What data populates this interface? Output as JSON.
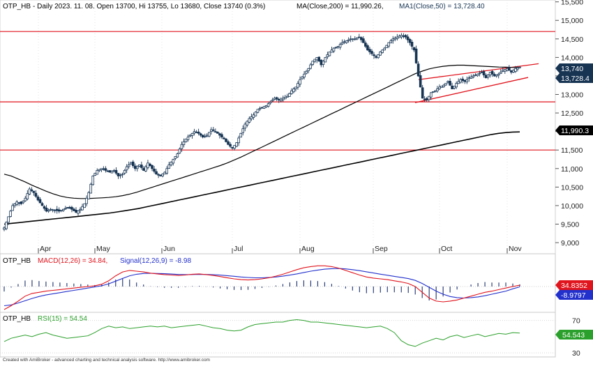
{
  "colors": {
    "candle": "#173453",
    "ma": "#000000",
    "resistance": "#e0141d",
    "macd": "#e0141d",
    "signal": "#2230cc",
    "rsi": "#2ca02c",
    "histogram": "#1b2f6b",
    "badge_price": "#173453",
    "badge_ma": "#000000",
    "badge_macd": "#e0141d",
    "badge_signal": "#2230cc",
    "badge_rsi": "#2ca02c"
  },
  "price_panel": {
    "ticker": "OTP_HB",
    "header_info": "- Daily 2023. 11. 08. Open 13700, Hi 13755, Lo 13680, Close 13740 (0.3%)",
    "ma200_label": "MA(Close,200) = 11,990.26,",
    "ma50_label": "MA1(Close,50) = 13,728.40",
    "badge_close": "13,740",
    "badge_ma50": "13,728.4",
    "badge_ma200": "11,990.3"
  },
  "macd_panel": {
    "ticker": "OTP_HB",
    "macd_label": "MACD(12,26) = 34.84,",
    "signal_label": "Signal(12,26,9) = -8.98",
    "badge_macd": "34.8352",
    "badge_signal": "-8.9797"
  },
  "rsi_panel": {
    "ticker": "OTP_HB",
    "rsi_label": "RSI(15) = 54.54",
    "badge_rsi": "54.543"
  },
  "footer": "Created with AmiBroker - advanced charting and technical analysis software. http://www.amibroker.com",
  "chart_data": [
    {
      "type": "candlestick",
      "title": "OTP_HB - Daily 2023. 11. 08. Open 13700, Hi 13755, Lo 13680, Close 13740 (0.3%)",
      "x_tick_labels": [
        "Apr",
        "May",
        "Jun",
        "Jul",
        "Aug",
        "Sep",
        "Oct",
        "Nov"
      ],
      "y_tick_labels": [
        "15,500",
        "15,000",
        "14,500",
        "14,000",
        "13,500",
        "13,000",
        "12,500",
        "12,000",
        "11,500",
        "11,000",
        "10,500",
        "10,000",
        "9,500",
        "9,000"
      ],
      "ylim": [
        8700,
        15550
      ],
      "horizontal_levels": [
        14700,
        12800,
        11500
      ],
      "trend_channel": {
        "upper": [
          [
            "2023-09-20",
            13400
          ],
          [
            "2023-11-10",
            13830
          ]
        ],
        "lower": [
          [
            "2023-09-20",
            12780
          ],
          [
            "2023-11-10",
            13460
          ]
        ]
      },
      "close_by_session": [
        9400,
        9700,
        10000,
        10100,
        10050,
        10200,
        10450,
        10350,
        10150,
        10000,
        9850,
        9900,
        9880,
        9850,
        9900,
        9950,
        9900,
        9820,
        9900,
        10050,
        10350,
        10800,
        10950,
        11000,
        10950,
        10900,
        10950,
        10800,
        10850,
        11050,
        11150,
        11000,
        11100,
        10950,
        11150,
        11000,
        10850,
        10800,
        10900,
        11100,
        11250,
        11400,
        11650,
        11800,
        11900,
        12000,
        11950,
        11850,
        11900,
        12050,
        12000,
        11900,
        11800,
        11650,
        11550,
        11700,
        11950,
        12200,
        12350,
        12450,
        12600,
        12650,
        12700,
        12800,
        12900,
        12850,
        12900,
        12950,
        13100,
        13200,
        13400,
        13550,
        13700,
        13900,
        14000,
        13800,
        14000,
        14150,
        14250,
        14300,
        14400,
        14450,
        14500,
        14500,
        14550,
        14400,
        14200,
        14100,
        14000,
        14150,
        14250,
        14400,
        14500,
        14550,
        14600,
        14550,
        14400,
        14200,
        13500,
        12900,
        12850,
        13050,
        13100,
        13200,
        13250,
        13350,
        13150,
        13300,
        13400,
        13350,
        13450,
        13500,
        13550,
        13600,
        13450,
        13600,
        13500,
        13550,
        13650,
        13700,
        13600,
        13700,
        13740
      ],
      "ma50_by_session": [
        10850,
        10800,
        10720,
        10640,
        10550,
        10470,
        10390,
        10320,
        10260,
        10220,
        10200,
        10190,
        10190,
        10200,
        10210,
        10220,
        10240,
        10270,
        10310,
        10360,
        10420,
        10480,
        10540,
        10600,
        10660,
        10720,
        10780,
        10840,
        10900,
        10960,
        11020,
        11080,
        11150,
        11230,
        11310,
        11400,
        11490,
        11580,
        11670,
        11760,
        11850,
        11940,
        12030,
        12120,
        12210,
        12300,
        12390,
        12480,
        12570,
        12660,
        12750,
        12840,
        12930,
        13020,
        13110,
        13200,
        13290,
        13380,
        13470,
        13560,
        13630,
        13690,
        13730,
        13760,
        13780,
        13790,
        13790,
        13780,
        13770,
        13760,
        13750,
        13740,
        13735,
        13730,
        13728
      ],
      "ma200_by_session": [
        9500,
        9520,
        9540,
        9560,
        9580,
        9600,
        9620,
        9640,
        9660,
        9680,
        9700,
        9720,
        9740,
        9760,
        9780,
        9800,
        9830,
        9860,
        9890,
        9920,
        9960,
        10000,
        10040,
        10080,
        10120,
        10160,
        10200,
        10240,
        10280,
        10320,
        10360,
        10400,
        10440,
        10480,
        10520,
        10560,
        10600,
        10640,
        10680,
        10720,
        10760,
        10800,
        10840,
        10880,
        10920,
        10960,
        11000,
        11040,
        11080,
        11120,
        11160,
        11200,
        11240,
        11280,
        11320,
        11360,
        11400,
        11440,
        11480,
        11520,
        11560,
        11600,
        11640,
        11680,
        11720,
        11760,
        11800,
        11840,
        11880,
        11920,
        11950,
        11970,
        11985,
        11990
      ]
    },
    {
      "type": "line",
      "title": "OTP_HB - MACD(12,26) = 34.84, Signal(12,26,9) = -8.98",
      "series": [
        {
          "name": "MACD(12,26)",
          "values": [
            -600,
            -500,
            -380,
            -250,
            -180,
            -150,
            -120,
            -100,
            -80,
            -60,
            -40,
            -20,
            0,
            20,
            60,
            150,
            280,
            380,
            420,
            400,
            380,
            350,
            330,
            310,
            300,
            290,
            300,
            320,
            330,
            310,
            290,
            260,
            230,
            200,
            180,
            170,
            180,
            200,
            230,
            270,
            320,
            380,
            440,
            490,
            520,
            540,
            540,
            520,
            480,
            420,
            360,
            300,
            250,
            220,
            200,
            180,
            150,
            120,
            80,
            0,
            -150,
            -300,
            -380,
            -400,
            -380,
            -350,
            -300,
            -250,
            -200,
            -150,
            -120,
            -80,
            -40,
            0,
            35
          ]
        },
        {
          "name": "Signal(12,26,9)",
          "values": [
            -500,
            -480,
            -430,
            -370,
            -310,
            -260,
            -220,
            -190,
            -160,
            -130,
            -100,
            -70,
            -40,
            -10,
            20,
            70,
            140,
            210,
            280,
            320,
            340,
            345,
            340,
            335,
            325,
            315,
            310,
            312,
            316,
            314,
            308,
            298,
            284,
            268,
            250,
            236,
            228,
            228,
            236,
            250,
            270,
            298,
            330,
            366,
            400,
            430,
            452,
            466,
            470,
            460,
            440,
            414,
            384,
            352,
            322,
            294,
            266,
            238,
            208,
            160,
            80,
            -20,
            -120,
            -200,
            -260,
            -290,
            -300,
            -290,
            -270,
            -240,
            -200,
            -160,
            -120,
            -60,
            -9
          ]
        }
      ]
    },
    {
      "type": "line",
      "title": "OTP_HB - RSI(15) = 54.54",
      "y_tick_labels": [
        "70",
        "30"
      ],
      "ylim": [
        25,
        80
      ],
      "series": [
        {
          "name": "RSI(15)",
          "values": [
            44,
            48,
            50,
            52,
            50,
            53,
            55,
            52,
            50,
            48,
            49,
            50,
            51,
            55,
            60,
            63,
            61,
            62,
            60,
            61,
            62,
            63,
            62,
            63,
            61,
            62,
            63,
            64,
            65,
            63,
            61,
            60,
            58,
            57,
            58,
            62,
            65,
            66,
            67,
            68,
            68,
            70,
            71,
            70,
            68,
            68,
            67,
            66,
            65,
            64,
            63,
            62,
            61,
            62,
            63,
            60,
            55,
            45,
            40,
            38,
            42,
            45,
            48,
            46,
            50,
            52,
            49,
            51,
            53,
            50,
            52,
            54,
            53,
            55,
            54.5
          ]
        }
      ]
    }
  ]
}
